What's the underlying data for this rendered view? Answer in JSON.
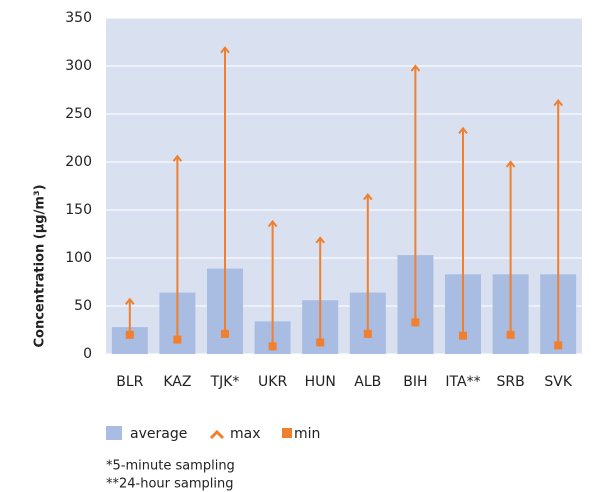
{
  "chart_data": {
    "type": "bar",
    "y_label": "Concentration (µg/m³)",
    "categories": [
      "BLR",
      "KAZ",
      "TJK*",
      "UKR",
      "HUN",
      "ALB",
      "BIH",
      "ITA**",
      "SRB",
      "SVK"
    ],
    "series": [
      {
        "name": "average",
        "color": "#a9bde3",
        "values": [
          28,
          64,
          89,
          34,
          56,
          64,
          103,
          83,
          83,
          83
        ]
      },
      {
        "name": "max",
        "color": "#f07f2e",
        "values": [
          57,
          206,
          319,
          138,
          121,
          166,
          300,
          235,
          200,
          264
        ]
      },
      {
        "name": "min",
        "color": "#f07f2e",
        "values": [
          20,
          15,
          21,
          8,
          12,
          21,
          33,
          19,
          20,
          9
        ]
      }
    ],
    "ylim": [
      0,
      350
    ],
    "yticks": [
      0,
      50,
      100,
      150,
      200,
      250,
      300,
      350
    ],
    "grid": true,
    "notes": [
      "*5-minute sampling",
      "**24-hour sampling"
    ]
  }
}
